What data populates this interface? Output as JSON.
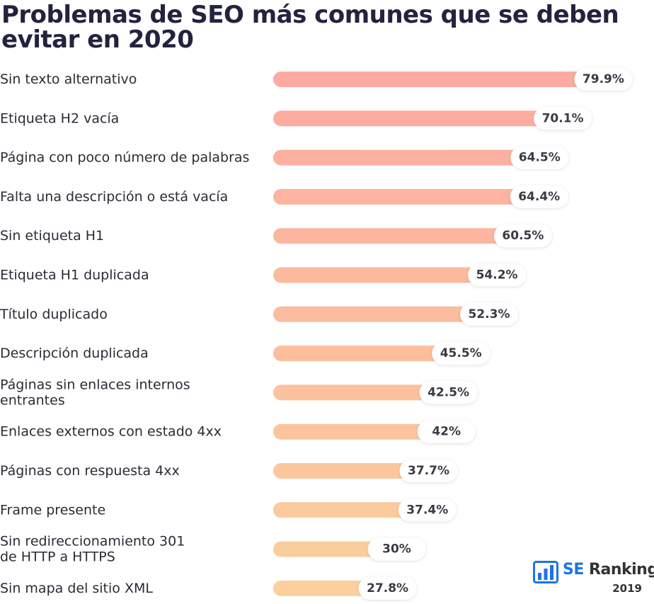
{
  "chart_data": {
    "type": "bar",
    "orientation": "horizontal",
    "title": "Problemas de SEO más comunes que se deben evitar en 2020",
    "categories": [
      [
        "Sin texto alternativo"
      ],
      [
        "Etiqueta H2 vacía"
      ],
      [
        "Página con poco número de palabras"
      ],
      [
        "Falta una descripción o está vacía"
      ],
      [
        "Sin etiqueta H1"
      ],
      [
        "Etiqueta H1 duplicada"
      ],
      [
        "Título duplicado"
      ],
      [
        "Descripción duplicada"
      ],
      [
        "Páginas sin enlaces internos",
        "entrantes"
      ],
      [
        "Enlaces externos con estado 4xx"
      ],
      [
        "Páginas con respuesta 4xx"
      ],
      [
        "Frame presente"
      ],
      [
        "Sin redireccionamiento 301",
        "de HTTP a HTTPS"
      ],
      [
        "Sin mapa del sitio XML"
      ]
    ],
    "values": [
      79.9,
      70.1,
      64.5,
      64.4,
      60.5,
      54.2,
      52.3,
      45.5,
      42.5,
      42,
      37.7,
      37.4,
      30,
      27.8
    ],
    "value_labels": [
      "79.9%",
      "70.1%",
      "64.5%",
      "64.4%",
      "60.5%",
      "54.2%",
      "52.3%",
      "45.5%",
      "42.5%",
      "42%",
      "37.7%",
      "37.4%",
      "30%",
      "27.8%"
    ],
    "unit": "%",
    "xlim": [
      0,
      100
    ],
    "grid": false,
    "colors": {
      "bar_top": "#fdaaa0",
      "bar_bottom": "#fbd09c",
      "value_pill_fill": "#ffffff",
      "value_text": "#3a3a44",
      "title": "#23233f"
    }
  },
  "brand": {
    "icon": "bar-chart-logo-icon",
    "name_prefix": "SE",
    "name_suffix": "Ranking",
    "year": "2019",
    "accent": "#1b74e4"
  }
}
